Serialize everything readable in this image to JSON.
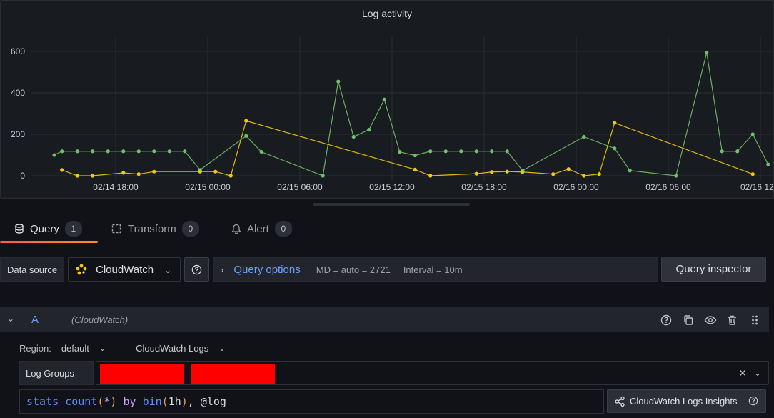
{
  "panel": {
    "title": "Log activity"
  },
  "chart_data": {
    "type": "line",
    "title": "Log activity",
    "yticks": [
      "0",
      "200",
      "400",
      "600"
    ],
    "ylim": [
      0,
      640
    ],
    "xticks": [
      "02/14 18:00",
      "02/15 00:00",
      "02/15 06:00",
      "02/15 12:00",
      "02/15 18:00",
      "02/16 00:00",
      "02/16 06:00",
      "02/16 12"
    ],
    "grid": true,
    "series": [
      {
        "color": "#73bf69",
        "points": [
          [
            "02/14 14:00",
            100
          ],
          [
            "02/14 14:30",
            118
          ],
          [
            "02/14 15:30",
            118
          ],
          [
            "02/14 16:30",
            118
          ],
          [
            "02/14 17:30",
            118
          ],
          [
            "02/14 18:30",
            118
          ],
          [
            "02/14 19:30",
            118
          ],
          [
            "02/14 20:30",
            118
          ],
          [
            "02/14 21:30",
            118
          ],
          [
            "02/14 22:30",
            118
          ],
          [
            "02/14 23:30",
            28
          ],
          [
            "02/15 02:30",
            192
          ],
          [
            "02/15 03:30",
            115
          ],
          [
            "02/15 07:30",
            0
          ],
          [
            "02/15 08:30",
            455
          ],
          [
            "02/15 09:30",
            188
          ],
          [
            "02/15 10:30",
            222
          ],
          [
            "02/15 11:30",
            368
          ],
          [
            "02/15 12:30",
            115
          ],
          [
            "02/15 13:30",
            98
          ],
          [
            "02/15 14:30",
            118
          ],
          [
            "02/15 15:30",
            118
          ],
          [
            "02/15 16:30",
            118
          ],
          [
            "02/15 17:30",
            118
          ],
          [
            "02/15 18:30",
            118
          ],
          [
            "02/15 19:30",
            118
          ],
          [
            "02/15 20:30",
            25
          ],
          [
            "02/16 00:30",
            188
          ],
          [
            "02/16 02:30",
            132
          ],
          [
            "02/16 03:30",
            25
          ],
          [
            "02/16 06:30",
            0
          ],
          [
            "02/16 08:30",
            595
          ],
          [
            "02/16 09:30",
            118
          ],
          [
            "02/16 10:30",
            118
          ],
          [
            "02/16 11:30",
            200
          ],
          [
            "02/16 12:30",
            55
          ]
        ]
      },
      {
        "color": "#f2cc0c",
        "points": [
          [
            "02/14 14:30",
            28
          ],
          [
            "02/14 15:30",
            0
          ],
          [
            "02/14 16:30",
            0
          ],
          [
            "02/14 18:30",
            14
          ],
          [
            "02/14 19:30",
            8
          ],
          [
            "02/14 20:30",
            20
          ],
          [
            "02/14 23:30",
            20
          ],
          [
            "02/15 00:30",
            20
          ],
          [
            "02/15 01:30",
            0
          ],
          [
            "02/15 02:30",
            265
          ],
          [
            "02/15 13:30",
            30
          ],
          [
            "02/15 14:30",
            0
          ],
          [
            "02/15 17:30",
            10
          ],
          [
            "02/15 18:30",
            18
          ],
          [
            "02/15 19:30",
            20
          ],
          [
            "02/15 20:30",
            18
          ],
          [
            "02/15 22:30",
            8
          ],
          [
            "02/15 23:30",
            32
          ],
          [
            "02/16 00:30",
            0
          ],
          [
            "02/16 01:30",
            8
          ],
          [
            "02/16 02:30",
            255
          ],
          [
            "02/16 11:30",
            8
          ]
        ]
      }
    ]
  },
  "tabs": [
    {
      "label": "Query",
      "count": "1"
    },
    {
      "label": "Transform",
      "count": "0"
    },
    {
      "label": "Alert",
      "count": "0"
    }
  ],
  "toolbar": {
    "ds_label": "Data source",
    "ds_value": "CloudWatch",
    "qo_title": "Query options",
    "qo_md": "MD = auto = 2721",
    "qo_interval": "Interval = 10m",
    "inspector": "Query inspector"
  },
  "query": {
    "ref": "A",
    "ds": "(CloudWatch)",
    "region_label": "Region:",
    "region_value": "default",
    "service": "CloudWatch Logs",
    "lg_label": "Log Groups",
    "expr": {
      "t1": "stats ",
      "t2": "count",
      "t3": "(",
      "t4": "*",
      "t5": ")",
      "t6": " by ",
      "t7": "bin",
      "t8": "(",
      "t9": "1h",
      "t10": ")",
      "t11": ", @log"
    },
    "insights": "CloudWatch Logs Insights"
  },
  "colors": {
    "accent": "#6e9fff",
    "green": "#73bf69",
    "yellow": "#f2cc0c",
    "tab_underline": "#f55f3e"
  }
}
